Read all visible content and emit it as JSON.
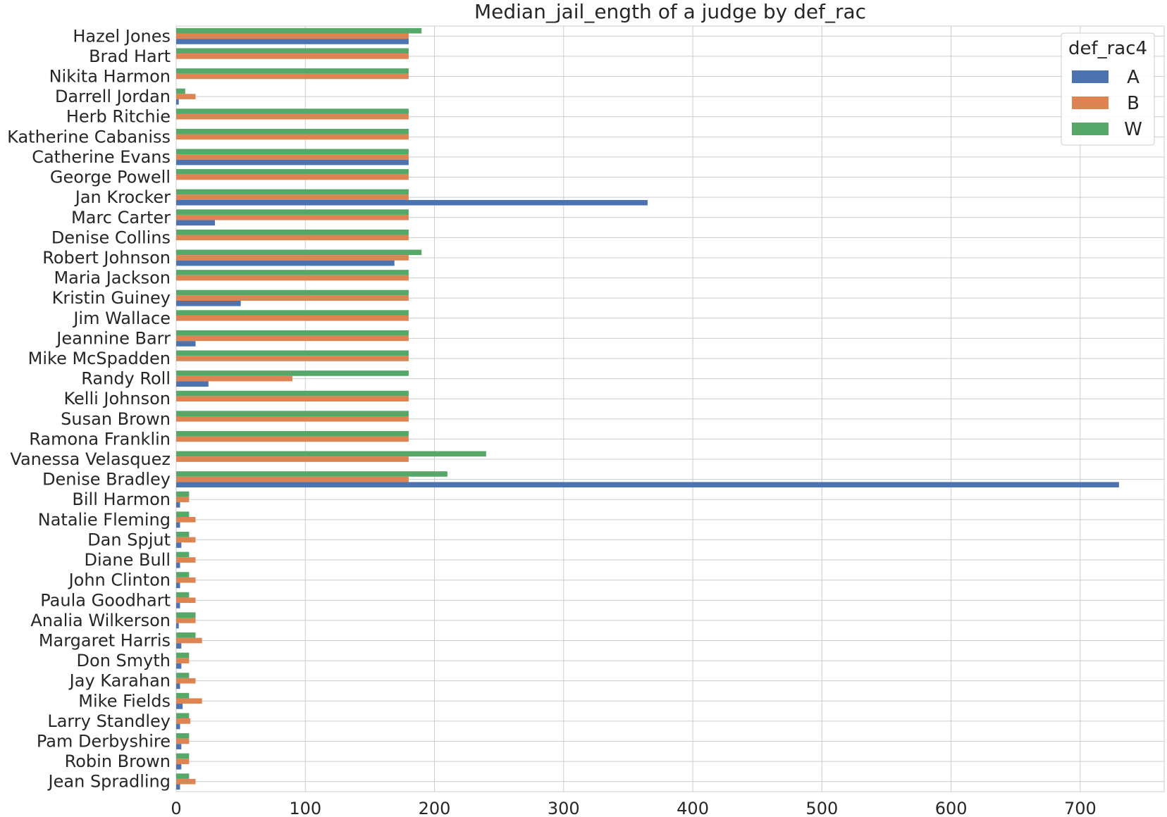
{
  "chart_data": {
    "type": "bar",
    "orientation": "horizontal",
    "title": "Median_jail_ength of a judge by def_rac",
    "xlabel": "",
    "ylabel": "",
    "xlim": [
      0,
      765
    ],
    "xticks": [
      0,
      100,
      200,
      300,
      400,
      500,
      600,
      700
    ],
    "grid": true,
    "legend": {
      "title": "def_rac4",
      "placement": "top-right"
    },
    "categories": [
      "Hazel Jones",
      "Brad Hart",
      "Nikita Harmon",
      "Darrell Jordan",
      "Herb Ritchie",
      "Katherine Cabaniss",
      "Catherine Evans",
      "George Powell",
      "Jan Krocker",
      "Marc Carter",
      "Denise Collins",
      "Robert Johnson",
      "Maria Jackson",
      "Kristin Guiney",
      "Jim Wallace",
      "Jeannine Barr",
      "Mike McSpadden",
      "Randy Roll",
      "Kelli Johnson",
      "Susan Brown",
      "Ramona Franklin",
      "Vanessa Velasquez",
      "Denise Bradley",
      "Bill Harmon",
      "Natalie Fleming",
      "Dan Spjut",
      "Diane Bull",
      "John Clinton",
      "Paula Goodhart",
      "Analia Wilkerson",
      "Margaret Harris",
      "Don Smyth",
      "Jay Karahan",
      "Mike Fields",
      "Larry Standley",
      "Pam Derbyshire",
      "Robin Brown",
      "Jean Spradling"
    ],
    "series": [
      {
        "name": "A",
        "color": "#4c72b0",
        "values": [
          180,
          0,
          0,
          2,
          0,
          0,
          180,
          0,
          365,
          30,
          0,
          169,
          0,
          50,
          0,
          15,
          0,
          25,
          0,
          0,
          0,
          0,
          730,
          3,
          3,
          4,
          3,
          3,
          3,
          2,
          4,
          4,
          3,
          5,
          3,
          4,
          4,
          3
        ]
      },
      {
        "name": "B",
        "color": "#dd8452",
        "values": [
          180,
          180,
          180,
          15,
          180,
          180,
          180,
          180,
          180,
          180,
          180,
          180,
          180,
          180,
          180,
          180,
          180,
          90,
          180,
          180,
          180,
          180,
          180,
          10,
          15,
          15,
          15,
          15,
          15,
          15,
          20,
          10,
          15,
          20,
          11,
          10,
          10,
          15
        ]
      },
      {
        "name": "W",
        "color": "#55a868",
        "values": [
          190,
          180,
          180,
          7,
          180,
          180,
          180,
          180,
          180,
          180,
          180,
          190,
          180,
          180,
          180,
          180,
          180,
          180,
          180,
          180,
          180,
          240,
          210,
          10,
          10,
          10,
          10,
          10,
          10,
          15,
          15,
          10,
          10,
          10,
          10,
          10,
          10,
          10
        ]
      }
    ]
  }
}
